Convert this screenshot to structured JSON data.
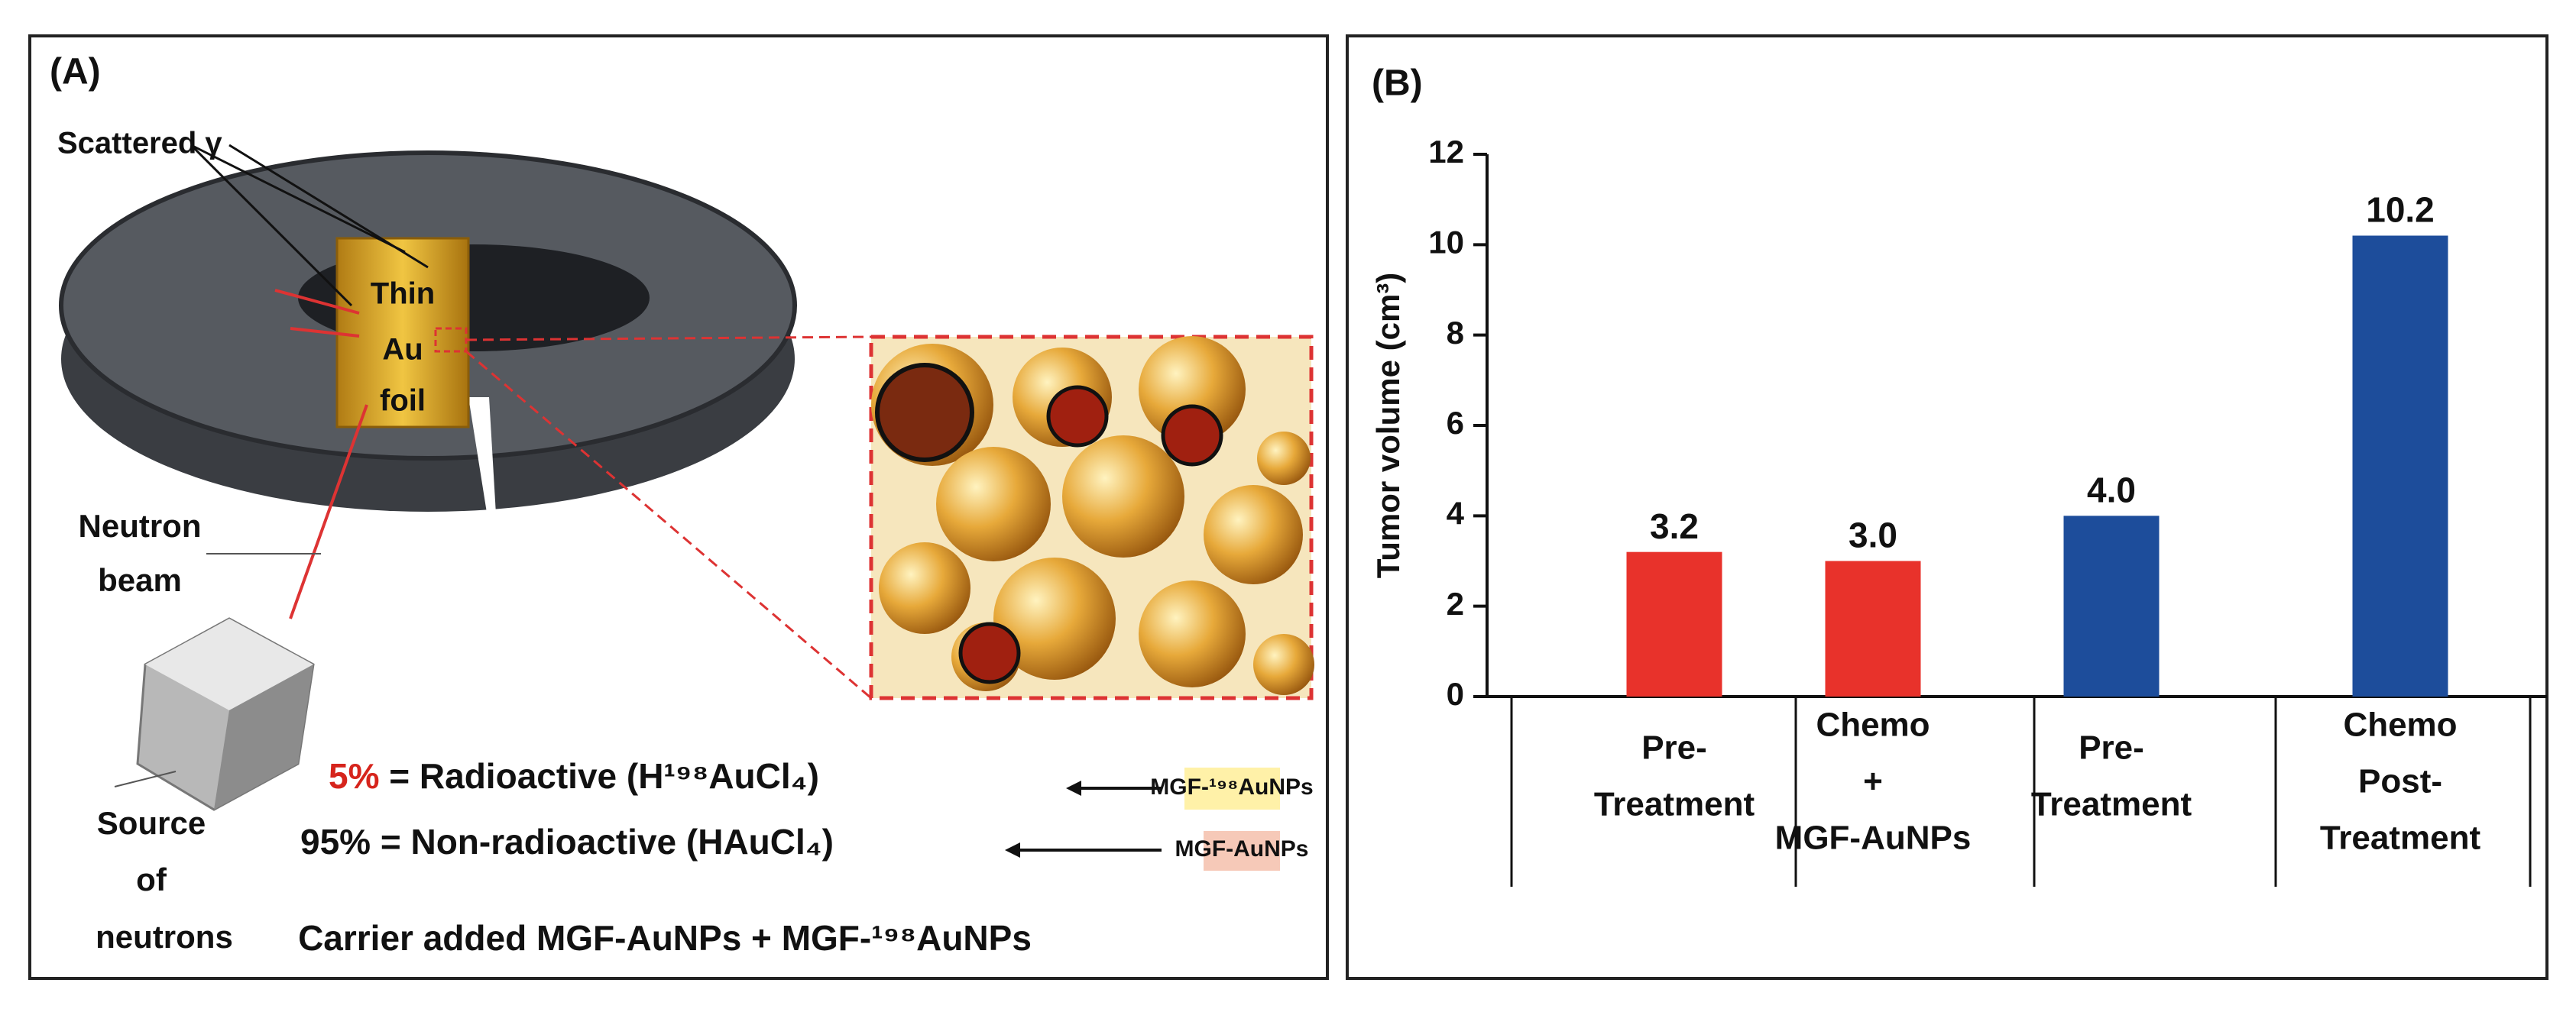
{
  "panel_a": {
    "label": "(A)",
    "scattered": "Scattered γ",
    "foil": [
      "Thin",
      "Au",
      "foil"
    ],
    "beam": [
      "Neutron",
      "beam"
    ],
    "source": [
      "Source",
      "of",
      "neutrons"
    ],
    "line1": {
      "percent": "5%",
      "text": " = Radioactive (H¹⁹⁸AuCl₄)",
      "tag": "MGF-¹⁹⁸AuNPs"
    },
    "line2": {
      "text": "95% = Non-radioactive (HAuCl₄)",
      "tag": "MGF-AuNPs"
    },
    "caption": "Carrier added MGF-AuNPs + MGF-¹⁹⁸AuNPs"
  },
  "chart_data": {
    "type": "bar",
    "label": "(B)",
    "ylabel": "Tumor volume (cm³)",
    "categories": [
      [
        "Pre-",
        "Treatment"
      ],
      [
        "Chemo",
        "+",
        "MGF-AuNPs"
      ],
      [
        "Pre-",
        "Treatment"
      ],
      [
        "Chemo",
        "Post-",
        "Treatment"
      ]
    ],
    "values": [
      3.2,
      3.0,
      4.0,
      10.2
    ],
    "value_labels": [
      "3.2",
      "3.0",
      "4.0",
      "10.2"
    ],
    "colors": [
      "#e8322b",
      "#e8322b",
      "#1d4d9b",
      "#1d4d9b"
    ],
    "ylim": [
      0,
      12
    ],
    "yticks": [
      0,
      2,
      4,
      6,
      8,
      10,
      12
    ]
  }
}
